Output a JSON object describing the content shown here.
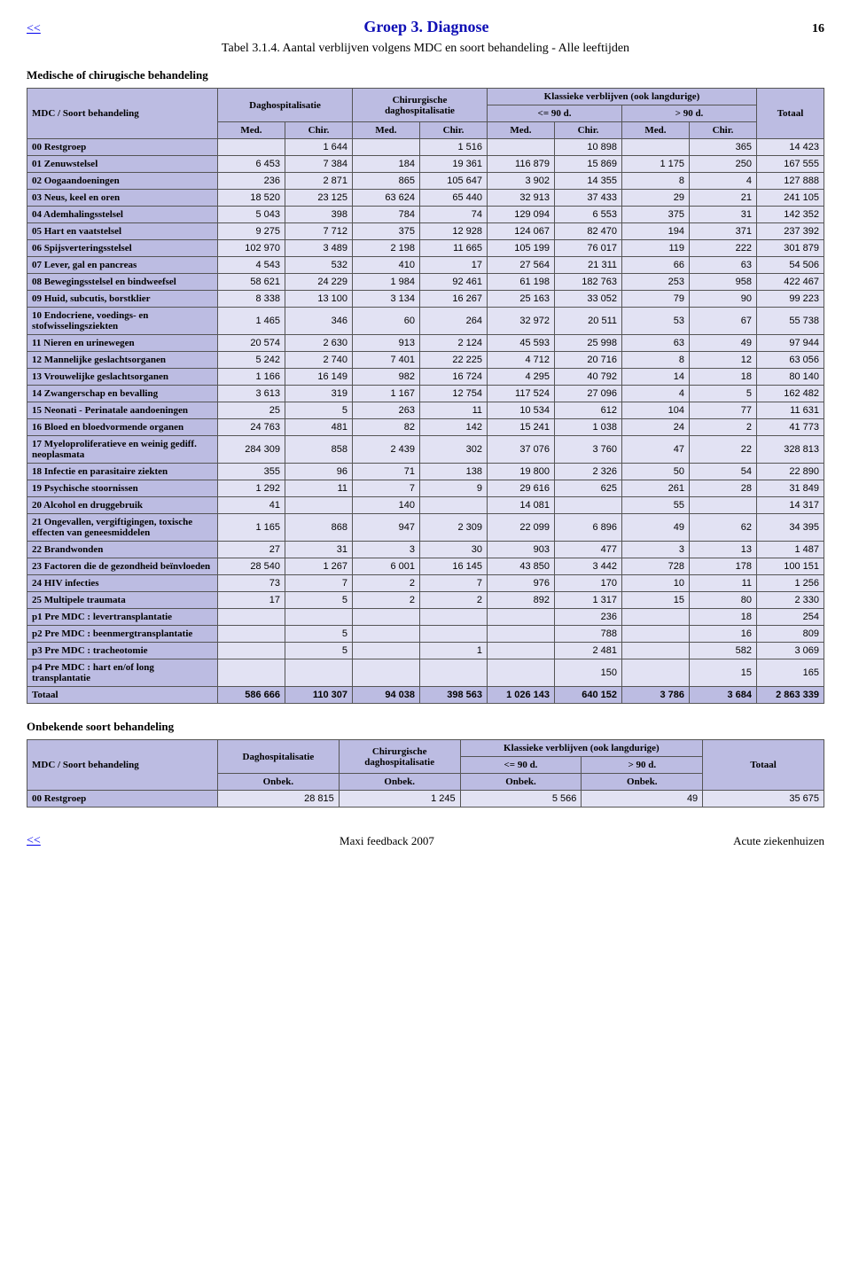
{
  "nav_back": "<<",
  "header_title": "Groep 3.  Diagnose",
  "page_number": "16",
  "table_caption": "Tabel 3.1.4.  Aantal verblijven volgens MDC en soort behandeling - Alle leeftijden",
  "section1_title": "Medische of chirugische behandeling",
  "section2_title": "Onbekende soort behandeling",
  "col_group_headers": {
    "dag": "Daghospitalisatie",
    "chir": "Chirurgische daghospitalisatie",
    "klass": "Klassieke verblijven (ook langdurige)",
    "totaal": "Totaal",
    "le90": "<= 90 d.",
    "gt90": "> 90 d."
  },
  "row_header_label": "MDC / Soort behandeling",
  "sub_headers1": [
    "Med.",
    "Chir.",
    "Med.",
    "Chir.",
    "Med.",
    "Chir.",
    "Med.",
    "Chir."
  ],
  "sub_headers2": [
    "Onbek.",
    "Onbek.",
    "Onbek.",
    "Onbek."
  ],
  "rows1": [
    {
      "label": "00 Restgroep",
      "v": [
        "",
        "1 644",
        "",
        "1 516",
        "",
        "10 898",
        "",
        "365",
        "14 423"
      ]
    },
    {
      "label": "01 Zenuwstelsel",
      "v": [
        "6 453",
        "7 384",
        "184",
        "19 361",
        "116 879",
        "15 869",
        "1 175",
        "250",
        "167 555"
      ]
    },
    {
      "label": "02 Oogaandoeningen",
      "v": [
        "236",
        "2 871",
        "865",
        "105 647",
        "3 902",
        "14 355",
        "8",
        "4",
        "127 888"
      ]
    },
    {
      "label": "03 Neus, keel en oren",
      "v": [
        "18 520",
        "23 125",
        "63 624",
        "65 440",
        "32 913",
        "37 433",
        "29",
        "21",
        "241 105"
      ]
    },
    {
      "label": "04 Ademhalingsstelsel",
      "v": [
        "5 043",
        "398",
        "784",
        "74",
        "129 094",
        "6 553",
        "375",
        "31",
        "142 352"
      ]
    },
    {
      "label": "05 Hart en vaatstelsel",
      "v": [
        "9 275",
        "7 712",
        "375",
        "12 928",
        "124 067",
        "82 470",
        "194",
        "371",
        "237 392"
      ]
    },
    {
      "label": "06 Spijsverteringsstelsel",
      "v": [
        "102 970",
        "3 489",
        "2 198",
        "11 665",
        "105 199",
        "76 017",
        "119",
        "222",
        "301 879"
      ]
    },
    {
      "label": "07 Lever, gal en pancreas",
      "v": [
        "4 543",
        "532",
        "410",
        "17",
        "27 564",
        "21 311",
        "66",
        "63",
        "54 506"
      ]
    },
    {
      "label": "08 Bewegingsstelsel en bindweefsel",
      "v": [
        "58 621",
        "24 229",
        "1 984",
        "92 461",
        "61 198",
        "182 763",
        "253",
        "958",
        "422 467"
      ]
    },
    {
      "label": "09 Huid, subcutis, borstklier",
      "v": [
        "8 338",
        "13 100",
        "3 134",
        "16 267",
        "25 163",
        "33 052",
        "79",
        "90",
        "99 223"
      ]
    },
    {
      "label": "10 Endocriene, voedings- en stofwisselingsziekten",
      "v": [
        "1 465",
        "346",
        "60",
        "264",
        "32 972",
        "20 511",
        "53",
        "67",
        "55 738"
      ]
    },
    {
      "label": "11 Nieren en urinewegen",
      "v": [
        "20 574",
        "2 630",
        "913",
        "2 124",
        "45 593",
        "25 998",
        "63",
        "49",
        "97 944"
      ]
    },
    {
      "label": "12 Mannelijke geslachtsorganen",
      "v": [
        "5 242",
        "2 740",
        "7 401",
        "22 225",
        "4 712",
        "20 716",
        "8",
        "12",
        "63 056"
      ]
    },
    {
      "label": "13 Vrouwelijke geslachtsorganen",
      "v": [
        "1 166",
        "16 149",
        "982",
        "16 724",
        "4 295",
        "40 792",
        "14",
        "18",
        "80 140"
      ]
    },
    {
      "label": "14 Zwangerschap en bevalling",
      "v": [
        "3 613",
        "319",
        "1 167",
        "12 754",
        "117 524",
        "27 096",
        "4",
        "5",
        "162 482"
      ]
    },
    {
      "label": "15 Neonati - Perinatale aandoeningen",
      "v": [
        "25",
        "5",
        "263",
        "11",
        "10 534",
        "612",
        "104",
        "77",
        "11 631"
      ]
    },
    {
      "label": "16 Bloed en bloedvormende organen",
      "v": [
        "24 763",
        "481",
        "82",
        "142",
        "15 241",
        "1 038",
        "24",
        "2",
        "41 773"
      ]
    },
    {
      "label": "17 Myeloproliferatieve en weinig gediff. neoplasmata",
      "v": [
        "284 309",
        "858",
        "2 439",
        "302",
        "37 076",
        "3 760",
        "47",
        "22",
        "328 813"
      ]
    },
    {
      "label": "18 Infectie en parasitaire ziekten",
      "v": [
        "355",
        "96",
        "71",
        "138",
        "19 800",
        "2 326",
        "50",
        "54",
        "22 890"
      ]
    },
    {
      "label": "19 Psychische stoornissen",
      "v": [
        "1 292",
        "11",
        "7",
        "9",
        "29 616",
        "625",
        "261",
        "28",
        "31 849"
      ]
    },
    {
      "label": "20 Alcohol en druggebruik",
      "v": [
        "41",
        "",
        "140",
        "",
        "14 081",
        "",
        "55",
        "",
        "14 317"
      ]
    },
    {
      "label": "21 Ongevallen, vergiftigingen, toxische effecten van geneesmiddelen",
      "v": [
        "1 165",
        "868",
        "947",
        "2 309",
        "22 099",
        "6 896",
        "49",
        "62",
        "34 395"
      ]
    },
    {
      "label": "22 Brandwonden",
      "v": [
        "27",
        "31",
        "3",
        "30",
        "903",
        "477",
        "3",
        "13",
        "1 487"
      ]
    },
    {
      "label": "23 Factoren die de gezondheid beïnvloeden",
      "v": [
        "28 540",
        "1 267",
        "6 001",
        "16 145",
        "43 850",
        "3 442",
        "728",
        "178",
        "100 151"
      ]
    },
    {
      "label": "24 HIV infecties",
      "v": [
        "73",
        "7",
        "2",
        "7",
        "976",
        "170",
        "10",
        "11",
        "1 256"
      ]
    },
    {
      "label": "25 Multipele traumata",
      "v": [
        "17",
        "5",
        "2",
        "2",
        "892",
        "1 317",
        "15",
        "80",
        "2 330"
      ]
    },
    {
      "label": "p1 Pre MDC : levertransplantatie",
      "v": [
        "",
        "",
        "",
        "",
        "",
        "236",
        "",
        "18",
        "254"
      ]
    },
    {
      "label": "p2 Pre MDC : beenmergtransplantatie",
      "v": [
        "",
        "5",
        "",
        "",
        "",
        "788",
        "",
        "16",
        "809"
      ]
    },
    {
      "label": "p3 Pre MDC : tracheotomie",
      "v": [
        "",
        "5",
        "",
        "1",
        "",
        "2 481",
        "",
        "582",
        "3 069"
      ]
    },
    {
      "label": "p4 Pre MDC : hart en/of long transplantatie",
      "v": [
        "",
        "",
        "",
        "",
        "",
        "150",
        "",
        "15",
        "165"
      ]
    }
  ],
  "total1": {
    "label": "Totaal",
    "v": [
      "586 666",
      "110 307",
      "94 038",
      "398 563",
      "1 026 143",
      "640 152",
      "3 786",
      "3 684",
      "2 863 339"
    ]
  },
  "rows2": [
    {
      "label": "00 Restgroep",
      "v": [
        "28 815",
        "1 245",
        "5 566",
        "49",
        "35 675"
      ]
    }
  ],
  "footer": {
    "back": "<<",
    "mid": "Maxi feedback 2007",
    "right": "Acute ziekenhuizen"
  },
  "colors": {
    "header_bg": "#bcbce2",
    "cell_bg": "#e2e2f3",
    "border": "#555",
    "title": "#0f0fb5",
    "link": "#0000ee"
  }
}
